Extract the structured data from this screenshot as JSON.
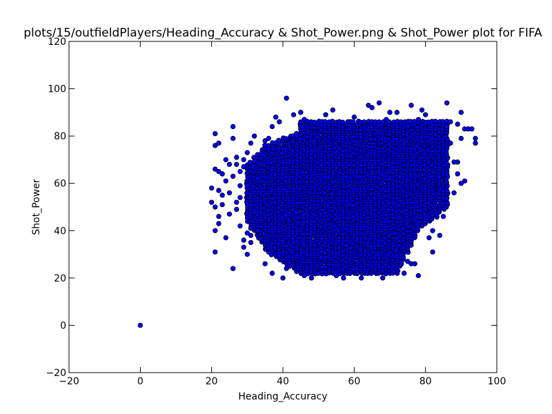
{
  "chart_data": {
    "type": "scatter",
    "title": "plots/15/outfieldPlayers/Heading_Accuracy & Shot_Power.png & Shot_Power plot for FIFA",
    "xlabel": "Heading_Accuracy",
    "ylabel": "Shot_Power",
    "xlim": [
      -20,
      100
    ],
    "ylim": [
      -20,
      120
    ],
    "xticks": [
      -20,
      0,
      20,
      40,
      60,
      80,
      100
    ],
    "yticks": [
      -20,
      0,
      20,
      40,
      60,
      80,
      100,
      120
    ],
    "grid": false,
    "marker_color": "#0000ff",
    "marker_edge_color": "#000000",
    "series": [
      {
        "points": [
          [
            0,
            0
          ],
          [
            20,
            58
          ],
          [
            20,
            52
          ],
          [
            21,
            81
          ],
          [
            21,
            76
          ],
          [
            21,
            66
          ],
          [
            21,
            50
          ],
          [
            21,
            40
          ],
          [
            21,
            31
          ],
          [
            22,
            77
          ],
          [
            22,
            65
          ],
          [
            22,
            57
          ],
          [
            22,
            46
          ],
          [
            22,
            43
          ],
          [
            23,
            64
          ],
          [
            23,
            55
          ],
          [
            23,
            51
          ],
          [
            24,
            70
          ],
          [
            24,
            61
          ],
          [
            24,
            37
          ],
          [
            25,
            68
          ],
          [
            25,
            56
          ],
          [
            25,
            47
          ],
          [
            26,
            84
          ],
          [
            26,
            79
          ],
          [
            26,
            24
          ],
          [
            26,
            63
          ],
          [
            27,
            71
          ],
          [
            27,
            52
          ],
          [
            28,
            65
          ],
          [
            28,
            42
          ],
          [
            29,
            67
          ],
          [
            29,
            36
          ],
          [
            29,
            33
          ],
          [
            30,
            73
          ],
          [
            30,
            59
          ],
          [
            30,
            30
          ],
          [
            31,
            77
          ],
          [
            31,
            35
          ],
          [
            32,
            80
          ],
          [
            33,
            62
          ],
          [
            33,
            40
          ],
          [
            35,
            26
          ],
          [
            36,
            79
          ],
          [
            37,
            22
          ],
          [
            37,
            84
          ],
          [
            38,
            88
          ],
          [
            39,
            86
          ],
          [
            40,
            20
          ],
          [
            41,
            96
          ],
          [
            43,
            89
          ],
          [
            45,
            90
          ],
          [
            46,
            21
          ],
          [
            48,
            20
          ],
          [
            50,
            22
          ],
          [
            52,
            89
          ],
          [
            54,
            91
          ],
          [
            55,
            21
          ],
          [
            57,
            20
          ],
          [
            60,
            88
          ],
          [
            62,
            20
          ],
          [
            64,
            93
          ],
          [
            65,
            92
          ],
          [
            67,
            94
          ],
          [
            68,
            20
          ],
          [
            70,
            90
          ],
          [
            72,
            90
          ],
          [
            74,
            22
          ],
          [
            75,
            84
          ],
          [
            76,
            93
          ],
          [
            77,
            26
          ],
          [
            78,
            21
          ],
          [
            79,
            91
          ],
          [
            80,
            89
          ],
          [
            81,
            37
          ],
          [
            82,
            31
          ],
          [
            84,
            38
          ],
          [
            85,
            46
          ],
          [
            86,
            94
          ],
          [
            86,
            84
          ],
          [
            87,
            77
          ],
          [
            88,
            69
          ],
          [
            88,
            56
          ],
          [
            89,
            85
          ],
          [
            90,
            90
          ],
          [
            90,
            60
          ],
          [
            90,
            79
          ],
          [
            91,
            83
          ],
          [
            91,
            61
          ],
          [
            92,
            83
          ],
          [
            93,
            83
          ],
          [
            94,
            79
          ],
          [
            94,
            77
          ]
        ]
      }
    ]
  }
}
